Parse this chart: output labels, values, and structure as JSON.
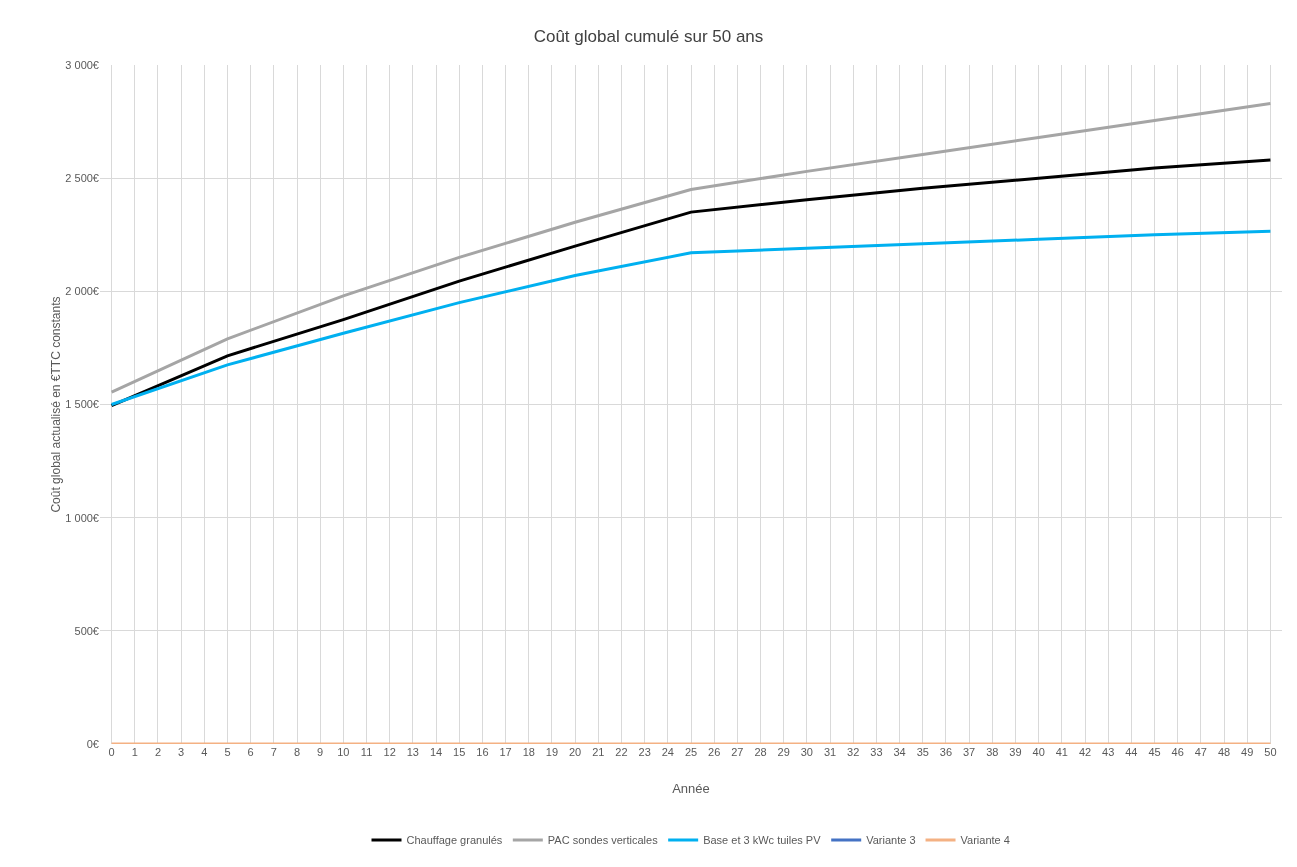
{
  "chart_data": {
    "type": "line",
    "title": "Coût global cumulé sur 50 ans",
    "xlabel": "Année",
    "ylabel": "Coût global actualisé en €TTC constants",
    "xlim": [
      -0.5,
      50.5
    ],
    "xticks": [
      0,
      1,
      2,
      3,
      4,
      5,
      6,
      7,
      8,
      9,
      10,
      11,
      12,
      13,
      14,
      15,
      16,
      17,
      18,
      19,
      20,
      21,
      22,
      23,
      24,
      25,
      26,
      27,
      28,
      29,
      30,
      31,
      32,
      33,
      34,
      35,
      36,
      37,
      38,
      39,
      40,
      41,
      42,
      43,
      44,
      45,
      46,
      47,
      48,
      49,
      50
    ],
    "ylim": [
      0,
      3000
    ],
    "yticks": [
      {
        "value": 0,
        "label": "0€"
      },
      {
        "value": 500,
        "label": "500€"
      },
      {
        "value": 1000,
        "label": "1 000€"
      },
      {
        "value": 1500,
        "label": "1 500€"
      },
      {
        "value": 2000,
        "label": "2 000€"
      },
      {
        "value": 2500,
        "label": "2 500€"
      },
      {
        "value": 3000,
        "label": "3 000€"
      }
    ],
    "grid": true,
    "legend": "bottom",
    "marker": "none",
    "line_style": "solid",
    "series": [
      {
        "name": "Chauffage granulés",
        "color": "#000000",
        "x": [
          0,
          5,
          10,
          15,
          20,
          25,
          30,
          35,
          40,
          45,
          50
        ],
        "values": [
          1495,
          1715,
          1875,
          2045,
          2200,
          2350,
          2405,
          2455,
          2500,
          2545,
          2580
        ]
      },
      {
        "name": "PAC sondes verticales",
        "color": "#a5a5a5",
        "x": [
          0,
          5,
          10,
          15,
          20,
          25,
          30,
          35,
          40,
          45,
          50
        ],
        "values": [
          1555,
          1790,
          1980,
          2150,
          2305,
          2450,
          2530,
          2605,
          2680,
          2755,
          2830
        ]
      },
      {
        "name": "Base et 3 kWc tuiles PV",
        "color": "#00b0f0",
        "x": [
          0,
          5,
          10,
          15,
          20,
          25,
          30,
          35,
          40,
          45,
          50
        ],
        "values": [
          1500,
          1675,
          1815,
          1950,
          2070,
          2170,
          2190,
          2210,
          2230,
          2250,
          2265
        ]
      },
      {
        "name": "Variante 3",
        "color": "#4472c4"
      },
      {
        "name": "Variante 4",
        "color": "#f4b183",
        "x": [
          0,
          50
        ],
        "values": [
          0,
          0
        ]
      }
    ]
  }
}
